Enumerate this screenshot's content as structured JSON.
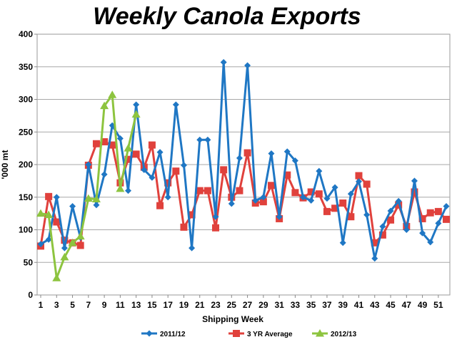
{
  "chart_data": {
    "type": "line",
    "title": "Weekly Canola Exports",
    "xlabel": "Shipping Week",
    "ylabel": "'000 mt",
    "ylim": [
      0,
      400
    ],
    "yticks": [
      0,
      50,
      100,
      150,
      200,
      250,
      300,
      350,
      400
    ],
    "xticks": [
      1,
      3,
      5,
      7,
      9,
      11,
      13,
      15,
      17,
      19,
      21,
      23,
      25,
      27,
      29,
      31,
      33,
      35,
      37,
      39,
      41,
      43,
      45,
      47,
      49,
      51
    ],
    "xlim": [
      1,
      52
    ],
    "grid": true,
    "legend_position": "bottom",
    "series": [
      {
        "name": "2011/12",
        "color": "#1f77c4",
        "marker": "diamond",
        "values": [
          78,
          85,
          150,
          72,
          136,
          88,
          200,
          138,
          185,
          260,
          240,
          160,
          292,
          192,
          180,
          219,
          150,
          292,
          199,
          72,
          238,
          238,
          120,
          357,
          140,
          210,
          352,
          145,
          150,
          217,
          120,
          220,
          206,
          150,
          145,
          190,
          148,
          165,
          80,
          155,
          174,
          123,
          56,
          105,
          129,
          144,
          100,
          175,
          95,
          81,
          110,
          136
        ]
      },
      {
        "name": "3 YR Average",
        "color": "#e0413c",
        "marker": "square",
        "values": [
          75,
          151,
          112,
          84,
          80,
          76,
          199,
          232,
          235,
          230,
          172,
          208,
          216,
          196,
          230,
          137,
          172,
          190,
          104,
          123,
          160,
          160,
          103,
          192,
          150,
          160,
          218,
          141,
          143,
          168,
          117,
          184,
          157,
          149,
          158,
          155,
          128,
          133,
          141,
          120,
          183,
          170,
          80,
          92,
          115,
          138,
          105,
          158,
          117,
          126,
          128,
          116
        ]
      },
      {
        "name": "2012/13",
        "color": "#8dc43f",
        "marker": "triangle",
        "values": [
          125,
          123,
          26,
          58,
          80,
          90,
          148,
          147,
          290,
          307,
          163,
          225,
          277
        ]
      }
    ]
  }
}
